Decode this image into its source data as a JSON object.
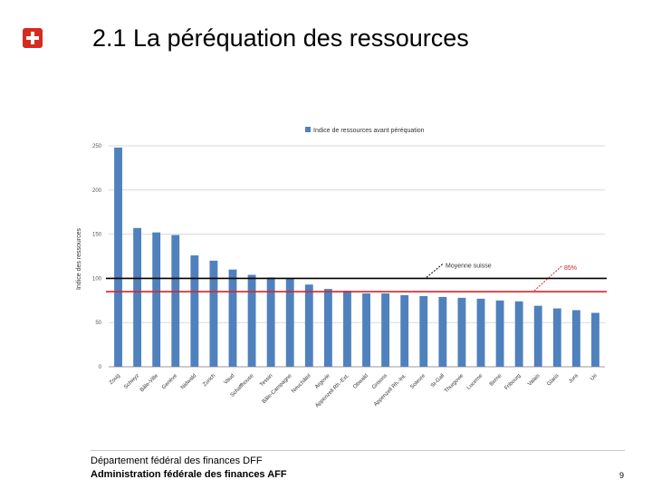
{
  "header": {
    "title": "2.1 La péréquation des ressources"
  },
  "chart_data": {
    "type": "bar",
    "title": "",
    "legend": "Indice de ressources avant péréquation",
    "ylabel": "Indice des ressources",
    "xlabel": "",
    "ylim": [
      0,
      250
    ],
    "yticks": [
      0,
      50,
      100,
      150,
      200,
      250
    ],
    "categories": [
      "Zoug",
      "Schwyz",
      "Bâle-Ville",
      "Genève",
      "Nidwald",
      "Zurich",
      "Vaud",
      "Schaffhouse",
      "Tessin",
      "Bâle-Campagne",
      "Neuchâtel",
      "Argovie",
      "Appenzell Rh.-Ext.",
      "Obwald",
      "Grisons",
      "Appenzell Rh.-Int.",
      "Soleure",
      "St-Gall",
      "Thurgovie",
      "Lucerne",
      "Berne",
      "Fribourg",
      "Valais",
      "Glaris",
      "Jura",
      "Uri"
    ],
    "values": [
      248,
      157,
      152,
      149,
      126,
      120,
      110,
      104,
      101,
      100,
      93,
      88,
      86,
      83,
      83,
      81,
      80,
      79,
      78,
      77,
      75,
      74,
      69,
      66,
      64,
      61
    ],
    "reference_lines": [
      {
        "label": "Moyenne suisse",
        "value": 100,
        "color": "#000000"
      },
      {
        "label": "85%",
        "value": 85,
        "color": "#d9232e"
      }
    ],
    "bar_color": "#4f81bd"
  },
  "footer": {
    "department": "Département fédéral des finances DFF",
    "administration": "Administration fédérale des finances AFF",
    "page": "9"
  }
}
